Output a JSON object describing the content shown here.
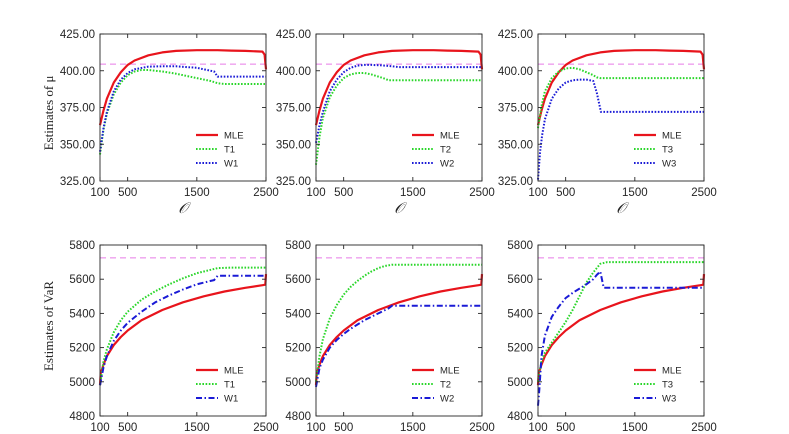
{
  "figure": {
    "row_labels": {
      "mu": "Estimates of μ",
      "var": "Estimates of VaR"
    },
    "x_axis_label": "𝒪"
  },
  "colors": {
    "MLE": "#e8141c",
    "T": "#29d629",
    "W": "#1a1ad6",
    "reference": "#e77be7",
    "axis": "#262626"
  },
  "chart_data": [
    {
      "type": "line",
      "row": "mu",
      "col": 0,
      "xlim": [
        100,
        2500
      ],
      "xticks": [
        100,
        500,
        1500,
        2500
      ],
      "xlabel": "𝒪",
      "ylim": [
        325,
        425
      ],
      "yticks": [
        325.0,
        350.0,
        375.0,
        400.0,
        425.0
      ],
      "ytick_labels": [
        "325.00",
        "350.00",
        "375.00",
        "400.00",
        "425.00"
      ],
      "ylabel": "Estimates of μ",
      "reference_value": 404.5,
      "series": [
        {
          "name": "MLE",
          "style": "solid",
          "x": [
            100,
            150,
            200,
            300,
            400,
            500,
            600,
            800,
            1000,
            1200,
            1500,
            1800,
            2000,
            2200,
            2450,
            2480,
            2500
          ],
          "y": [
            363,
            373,
            381,
            392,
            399,
            404,
            407,
            410.5,
            412.5,
            413.5,
            414,
            414,
            413.7,
            413.5,
            413,
            411,
            401
          ]
        },
        {
          "name": "T1",
          "style": "dotted",
          "x": [
            100,
            150,
            200,
            300,
            400,
            500,
            600,
            700,
            800,
            1000,
            1200,
            1500,
            1700,
            1800,
            1900,
            2200,
            2500
          ],
          "y": [
            343,
            360,
            371,
            384,
            392,
            397,
            399.5,
            400.5,
            400.5,
            399.5,
            398,
            395,
            393,
            391.5,
            391,
            391,
            391
          ]
        },
        {
          "name": "W1",
          "style": "dotted",
          "x": [
            100,
            150,
            200,
            300,
            400,
            500,
            600,
            800,
            1000,
            1200,
            1500,
            1650,
            1750,
            1800,
            1900,
            2200,
            2500
          ],
          "y": [
            345,
            361,
            372,
            386,
            394,
            398.5,
            401,
            402.8,
            403,
            403,
            402,
            400.5,
            399.5,
            396,
            396,
            396,
            396
          ]
        }
      ]
    },
    {
      "type": "line",
      "row": "mu",
      "col": 1,
      "xlim": [
        100,
        2500
      ],
      "xticks": [
        100,
        500,
        1500,
        2500
      ],
      "xlabel": "𝒪",
      "ylim": [
        325,
        425
      ],
      "yticks": [
        325.0,
        350.0,
        375.0,
        400.0,
        425.0
      ],
      "ytick_labels": [
        "325.00",
        "350.00",
        "375.00",
        "400.00",
        "425.00"
      ],
      "ylabel": "",
      "reference_value": 404.5,
      "series": [
        {
          "name": "MLE",
          "style": "solid",
          "x": [
            100,
            150,
            200,
            300,
            400,
            500,
            600,
            800,
            1000,
            1200,
            1500,
            1800,
            2000,
            2200,
            2450,
            2480,
            2500
          ],
          "y": [
            363,
            373,
            381,
            392,
            399,
            404,
            407,
            410.5,
            412.5,
            413.5,
            414,
            414,
            413.7,
            413.5,
            413,
            411,
            401
          ]
        },
        {
          "name": "T2",
          "style": "dotted",
          "x": [
            100,
            150,
            200,
            300,
            400,
            500,
            600,
            700,
            800,
            900,
            1000,
            1100,
            1150,
            1300,
            1600,
            2000,
            2500
          ],
          "y": [
            336,
            355,
            368,
            382,
            390,
            395,
            397.5,
            398.5,
            398.5,
            397.5,
            396,
            394.5,
            393.5,
            393.5,
            393.5,
            393.5,
            393.5
          ]
        },
        {
          "name": "W2",
          "style": "dotted",
          "x": [
            100,
            150,
            200,
            300,
            400,
            500,
            600,
            700,
            800,
            900,
            1000,
            1100,
            1200,
            1300,
            1600,
            2000,
            2500
          ],
          "y": [
            351,
            363,
            372,
            386,
            394,
            399,
            402,
            403.5,
            404,
            404,
            403.8,
            403.5,
            403,
            402.5,
            402.5,
            402.5,
            402.5
          ]
        }
      ]
    },
    {
      "type": "line",
      "row": "mu",
      "col": 2,
      "xlim": [
        100,
        2500
      ],
      "xticks": [
        100,
        500,
        1500,
        2500
      ],
      "xlabel": "𝒪",
      "ylim": [
        325,
        425
      ],
      "yticks": [
        325.0,
        350.0,
        375.0,
        400.0,
        425.0
      ],
      "ytick_labels": [
        "325.00",
        "350.00",
        "375.00",
        "400.00",
        "425.00"
      ],
      "ylabel": "",
      "reference_value": 404.5,
      "series": [
        {
          "name": "MLE",
          "style": "solid",
          "x": [
            100,
            150,
            200,
            300,
            400,
            500,
            600,
            800,
            1000,
            1200,
            1500,
            1800,
            2000,
            2200,
            2450,
            2480,
            2500
          ],
          "y": [
            363,
            373,
            381,
            392,
            399,
            404,
            407,
            410.5,
            412.5,
            413.5,
            414,
            414,
            413.7,
            413.5,
            413,
            411,
            401
          ]
        },
        {
          "name": "T3",
          "style": "dotted",
          "x": [
            100,
            150,
            200,
            300,
            400,
            500,
            600,
            700,
            800,
            900,
            950,
            1000,
            1200,
            1500,
            2000,
            2500
          ],
          "y": [
            361,
            376,
            386,
            395,
            399.5,
            401.5,
            402,
            401,
            399,
            397,
            395.5,
            395,
            395,
            395,
            395,
            395
          ]
        },
        {
          "name": "W3",
          "style": "dotted",
          "x": [
            100,
            130,
            160,
            200,
            300,
            400,
            500,
            600,
            700,
            800,
            900,
            950,
            1000,
            1010,
            1500,
            2000,
            2500
          ],
          "y": [
            326,
            345,
            356,
            367,
            381,
            388,
            392,
            393.5,
            394,
            394,
            393,
            385,
            374,
            372,
            372,
            372,
            372
          ]
        }
      ]
    },
    {
      "type": "line",
      "row": "var",
      "col": 0,
      "xlim": [
        100,
        2500
      ],
      "xticks": [
        100,
        500,
        1500,
        2500
      ],
      "xlabel": "𝒪",
      "ylim": [
        4800,
        5800
      ],
      "yticks": [
        4800,
        5000,
        5200,
        5400,
        5600,
        5800
      ],
      "ytick_labels": [
        "4800",
        "5000",
        "5200",
        "5400",
        "5600",
        "5800"
      ],
      "ylabel": "Estimates of VaR",
      "reference_value": 5725,
      "series": [
        {
          "name": "MLE",
          "style": "solid",
          "x": [
            100,
            110,
            150,
            200,
            300,
            400,
            500,
            700,
            1000,
            1300,
            1600,
            1900,
            2200,
            2450,
            2490,
            2500
          ],
          "y": [
            4980,
            5050,
            5100,
            5150,
            5215,
            5262,
            5300,
            5360,
            5420,
            5465,
            5500,
            5528,
            5550,
            5565,
            5568,
            5630
          ]
        },
        {
          "name": "T1",
          "style": "dotted",
          "x": [
            100,
            150,
            200,
            300,
            400,
            500,
            700,
            900,
            1100,
            1300,
            1500,
            1700,
            1800,
            2000,
            2500
          ],
          "y": [
            4980,
            5120,
            5190,
            5290,
            5360,
            5410,
            5480,
            5530,
            5570,
            5605,
            5635,
            5655,
            5665,
            5668,
            5668
          ]
        },
        {
          "name": "W1",
          "style": "dashdot",
          "x": [
            100,
            150,
            200,
            300,
            400,
            500,
            700,
            900,
            1100,
            1300,
            1500,
            1700,
            1750,
            1800,
            2000,
            2500
          ],
          "y": [
            4980,
            5085,
            5150,
            5240,
            5300,
            5345,
            5410,
            5465,
            5505,
            5540,
            5570,
            5590,
            5595,
            5620,
            5620,
            5620
          ]
        }
      ]
    },
    {
      "type": "line",
      "row": "var",
      "col": 1,
      "xlim": [
        100,
        2500
      ],
      "xticks": [
        100,
        500,
        1500,
        2500
      ],
      "xlabel": "𝒪",
      "ylim": [
        4800,
        5800
      ],
      "yticks": [
        4800,
        5000,
        5200,
        5400,
        5600,
        5800
      ],
      "ytick_labels": [
        "4800",
        "5000",
        "5200",
        "5400",
        "5600",
        "5800"
      ],
      "ylabel": "",
      "reference_value": 5725,
      "series": [
        {
          "name": "MLE",
          "style": "solid",
          "x": [
            100,
            110,
            150,
            200,
            300,
            400,
            500,
            700,
            1000,
            1300,
            1600,
            1900,
            2200,
            2450,
            2490,
            2500
          ],
          "y": [
            4980,
            5050,
            5100,
            5150,
            5215,
            5262,
            5300,
            5360,
            5420,
            5465,
            5500,
            5528,
            5550,
            5565,
            5568,
            5630
          ]
        },
        {
          "name": "T2",
          "style": "dotted",
          "x": [
            100,
            150,
            200,
            300,
            400,
            500,
            600,
            700,
            800,
            900,
            1000,
            1100,
            1200,
            1500,
            2000,
            2500
          ],
          "y": [
            5000,
            5150,
            5250,
            5370,
            5450,
            5510,
            5555,
            5590,
            5620,
            5645,
            5665,
            5678,
            5685,
            5685,
            5685,
            5685
          ]
        },
        {
          "name": "W2",
          "style": "dashdot",
          "x": [
            100,
            150,
            200,
            300,
            400,
            500,
            600,
            700,
            800,
            900,
            1000,
            1100,
            1150,
            1200,
            1500,
            2000,
            2500
          ],
          "y": [
            4970,
            5080,
            5130,
            5200,
            5245,
            5280,
            5310,
            5335,
            5360,
            5380,
            5400,
            5420,
            5430,
            5445,
            5445,
            5445,
            5445
          ]
        }
      ]
    },
    {
      "type": "line",
      "row": "var",
      "col": 2,
      "xlim": [
        100,
        2500
      ],
      "xticks": [
        100,
        500,
        1500,
        2500
      ],
      "xlabel": "𝒪",
      "ylim": [
        4800,
        5800
      ],
      "yticks": [
        4800,
        5000,
        5200,
        5400,
        5600,
        5800
      ],
      "ytick_labels": [
        "4800",
        "5000",
        "5200",
        "5400",
        "5600",
        "5800"
      ],
      "ylabel": "",
      "reference_value": 5725,
      "series": [
        {
          "name": "MLE",
          "style": "solid",
          "x": [
            100,
            110,
            150,
            200,
            300,
            400,
            500,
            700,
            1000,
            1300,
            1600,
            1900,
            2200,
            2450,
            2490,
            2500
          ],
          "y": [
            4980,
            5050,
            5100,
            5150,
            5215,
            5262,
            5300,
            5360,
            5420,
            5465,
            5500,
            5528,
            5550,
            5565,
            5568,
            5630
          ]
        },
        {
          "name": "T3",
          "style": "dotted",
          "x": [
            100,
            150,
            200,
            300,
            400,
            500,
            600,
            700,
            800,
            900,
            1000,
            1100,
            1500,
            2000,
            2500
          ],
          "y": [
            5000,
            5120,
            5170,
            5230,
            5290,
            5350,
            5420,
            5500,
            5580,
            5640,
            5690,
            5700,
            5700,
            5700,
            5700
          ]
        },
        {
          "name": "W3",
          "style": "dashdot",
          "x": [
            100,
            120,
            150,
            200,
            300,
            400,
            500,
            600,
            700,
            800,
            900,
            950,
            1000,
            1050,
            1500,
            2000,
            2500
          ],
          "y": [
            4860,
            4960,
            5150,
            5270,
            5380,
            5440,
            5490,
            5520,
            5545,
            5570,
            5600,
            5625,
            5645,
            5550,
            5550,
            5550,
            5550
          ]
        }
      ]
    }
  ]
}
